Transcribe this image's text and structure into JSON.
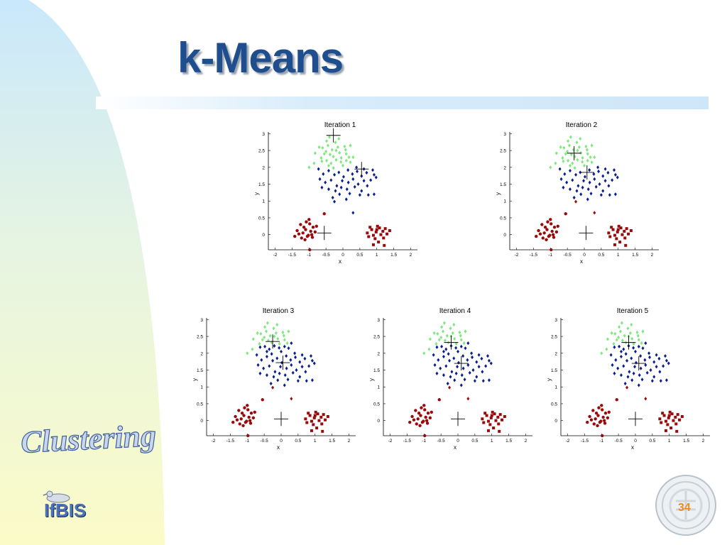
{
  "slide": {
    "title": "k-Means",
    "section_label": "Clustering",
    "logo_text": "IfBIS",
    "page_number": "34",
    "colors": {
      "title": "#1f4e8f",
      "cluster_green": "#7de87d",
      "cluster_blue": "#0a1f8f",
      "cluster_red": "#9b0a0a",
      "page_number": "#f08a1a"
    }
  },
  "chart_data": [
    {
      "type": "scatter",
      "title": "Iteration 1",
      "xlabel": "x",
      "ylabel": "y",
      "xlim": [
        -2.2,
        2.2
      ],
      "ylim": [
        -0.45,
        3.05
      ],
      "xticks": [
        "-2",
        "-1.5",
        "-1",
        "-0.5",
        "0",
        "0.5",
        "1",
        "1.5",
        "2"
      ],
      "yticks": [
        "0",
        "0.5",
        "1",
        "1.5",
        "2",
        "2.5",
        "3"
      ],
      "assignment": {
        "top_in_blue": false,
        "isolated_in_blue": true
      },
      "centroids": [
        [
          -0.28,
          2.95
        ],
        [
          0.55,
          1.95
        ],
        [
          -0.55,
          0.05
        ]
      ]
    },
    {
      "type": "scatter",
      "title": "Iteration 2",
      "xlabel": "x",
      "ylabel": "y",
      "xlim": [
        -2.2,
        2.2
      ],
      "ylim": [
        -0.45,
        3.05
      ],
      "xticks": [
        "-2",
        "-1.5",
        "-1",
        "-0.5",
        "0",
        "0.5",
        "1",
        "1.5",
        "2"
      ],
      "yticks": [
        "0",
        "0.5",
        "1",
        "1.5",
        "2",
        "2.5",
        "3"
      ],
      "assignment": {
        "top_in_blue": false,
        "isolated_in_blue": false
      },
      "centroids": [
        [
          -0.3,
          2.42
        ],
        [
          0.08,
          1.85
        ],
        [
          0.05,
          0.05
        ]
      ]
    },
    {
      "type": "scatter",
      "title": "Iteration 3",
      "xlabel": "x",
      "ylabel": "y",
      "xlim": [
        -2.2,
        2.2
      ],
      "ylim": [
        -0.45,
        3.05
      ],
      "xticks": [
        "-2",
        "-1.5",
        "-1",
        "-0.5",
        "0",
        "0.5",
        "1",
        "1.5",
        "2"
      ],
      "yticks": [
        "0",
        "0.5",
        "1",
        "1.5",
        "2",
        "2.5",
        "3"
      ],
      "assignment": {
        "top_in_blue": true,
        "isolated_in_blue": false
      },
      "centroids": [
        [
          -0.25,
          2.35
        ],
        [
          0.05,
          1.72
        ],
        [
          0.0,
          0.05
        ]
      ]
    },
    {
      "type": "scatter",
      "title": "Iteration 4",
      "xlabel": "x",
      "ylabel": "y",
      "xlim": [
        -2.2,
        2.2
      ],
      "ylim": [
        -0.45,
        3.05
      ],
      "xticks": [
        "-2",
        "-1.5",
        "-1",
        "-0.5",
        "0",
        "0.5",
        "1",
        "1.5",
        "2"
      ],
      "yticks": [
        "0",
        "0.5",
        "1",
        "1.5",
        "2",
        "2.5",
        "3"
      ],
      "assignment": {
        "top_in_blue": true,
        "isolated_in_blue": false
      },
      "centroids": [
        [
          -0.2,
          2.32
        ],
        [
          0.1,
          1.7
        ],
        [
          0.0,
          0.05
        ]
      ]
    },
    {
      "type": "scatter",
      "title": "Iteration 5",
      "xlabel": "x",
      "ylabel": "y",
      "xlim": [
        -2.2,
        2.2
      ],
      "ylim": [
        -0.45,
        3.05
      ],
      "xticks": [
        "-2",
        "-1.5",
        "-1",
        "-0.5",
        "0",
        "0.5",
        "1",
        "1.5",
        "2"
      ],
      "yticks": [
        "0",
        "0.5",
        "1",
        "1.5",
        "2",
        "2.5",
        "3"
      ],
      "assignment": {
        "top_in_blue": true,
        "isolated_in_blue": false
      },
      "centroids": [
        [
          -0.2,
          2.32
        ],
        [
          0.1,
          1.7
        ],
        [
          0.0,
          0.05
        ]
      ]
    }
  ],
  "points": {
    "upper": [
      [
        -0.64,
        2.28
      ],
      [
        -0.5,
        2.47
      ],
      [
        -0.6,
        2.58
      ],
      [
        -0.44,
        2.65
      ],
      [
        -0.32,
        2.52
      ],
      [
        -0.22,
        2.74
      ],
      [
        -0.1,
        2.43
      ],
      [
        0.05,
        2.62
      ],
      [
        -0.55,
        2.4
      ],
      [
        -0.38,
        2.38
      ],
      [
        -0.28,
        2.32
      ],
      [
        -0.15,
        2.6
      ],
      [
        -0.05,
        2.28
      ],
      [
        0.08,
        2.52
      ],
      [
        -0.48,
        2.78
      ],
      [
        -0.82,
        2.42
      ],
      [
        0.18,
        2.3
      ],
      [
        -0.7,
        2.6
      ],
      [
        -0.2,
        2.5
      ],
      [
        -0.12,
        2.85
      ],
      [
        0.22,
        2.65
      ],
      [
        -0.4,
        2.9
      ],
      [
        0.1,
        2.4
      ],
      [
        -1.0,
        2.0
      ],
      [
        -0.85,
        2.12
      ]
    ],
    "top": [
      [
        -0.62,
        2.18
      ],
      [
        -0.48,
        2.2
      ],
      [
        -0.35,
        2.12
      ],
      [
        -0.2,
        2.22
      ],
      [
        -0.06,
        2.16
      ],
      [
        0.1,
        2.2
      ],
      [
        0.22,
        2.15
      ],
      [
        -0.42,
        2.05
      ],
      [
        -0.28,
        1.98
      ],
      [
        0.0,
        2.05
      ],
      [
        0.3,
        2.3
      ]
    ],
    "core": [
      [
        -0.72,
        1.95
      ],
      [
        -0.58,
        1.8
      ],
      [
        -0.42,
        1.9
      ],
      [
        -0.25,
        1.78
      ],
      [
        -0.12,
        1.85
      ],
      [
        0.02,
        1.72
      ],
      [
        0.15,
        1.92
      ],
      [
        0.28,
        1.8
      ],
      [
        0.42,
        1.88
      ],
      [
        0.55,
        1.74
      ],
      [
        0.7,
        1.84
      ],
      [
        0.82,
        1.62
      ],
      [
        0.92,
        1.78
      ],
      [
        0.62,
        1.6
      ],
      [
        0.45,
        1.5
      ],
      [
        0.3,
        1.65
      ],
      [
        0.16,
        1.55
      ],
      [
        -0.02,
        1.6
      ],
      [
        -0.18,
        1.45
      ],
      [
        -0.35,
        1.62
      ],
      [
        -0.52,
        1.55
      ],
      [
        -0.68,
        1.65
      ],
      [
        -0.62,
        1.4
      ],
      [
        -0.42,
        1.35
      ],
      [
        -0.22,
        1.3
      ],
      [
        -0.05,
        1.4
      ],
      [
        0.12,
        1.35
      ],
      [
        0.35,
        1.42
      ],
      [
        0.55,
        1.3
      ],
      [
        0.72,
        1.45
      ],
      [
        0.88,
        1.92
      ],
      [
        0.98,
        1.7
      ],
      [
        0.4,
        2.0
      ],
      [
        0.62,
        1.95
      ],
      [
        -0.1,
        1.2
      ],
      [
        0.2,
        1.22
      ],
      [
        -0.3,
        1.1
      ],
      [
        0.5,
        1.18
      ],
      [
        0.75,
        1.18
      ],
      [
        0.1,
        1.05
      ],
      [
        0.92,
        1.2
      ]
    ],
    "isolated": [
      [
        -0.25,
        0.98
      ],
      [
        0.3,
        0.65
      ]
    ],
    "left": [
      [
        -1.18,
        0.05
      ],
      [
        -1.1,
        0.15
      ],
      [
        -1.02,
        -0.02
      ],
      [
        -0.95,
        0.1
      ],
      [
        -0.88,
        0.22
      ],
      [
        -1.3,
        0.02
      ],
      [
        -1.22,
        -0.1
      ],
      [
        -1.05,
        -0.05
      ],
      [
        -0.98,
        0.32
      ],
      [
        -0.82,
        0.08
      ],
      [
        -1.15,
        0.22
      ],
      [
        -1.35,
        0.12
      ],
      [
        -0.9,
        -0.08
      ],
      [
        -0.78,
        0.25
      ],
      [
        -1.08,
        0.38
      ],
      [
        -1.25,
        0.3
      ],
      [
        -1.0,
        0.45
      ],
      [
        -1.42,
        -0.05
      ],
      [
        -0.92,
        0.0
      ],
      [
        -1.12,
        -0.15
      ],
      [
        -0.55,
        0.62
      ],
      [
        -0.98,
        -0.45
      ]
    ],
    "right": [
      [
        0.72,
        0.05
      ],
      [
        0.85,
        0.15
      ],
      [
        0.98,
        0.08
      ],
      [
        1.08,
        0.2
      ],
      [
        1.18,
        0.1
      ],
      [
        0.9,
        -0.02
      ],
      [
        1.02,
        0.25
      ],
      [
        1.25,
        0.18
      ],
      [
        0.8,
        0.22
      ],
      [
        1.12,
        0.0
      ],
      [
        0.95,
        -0.12
      ],
      [
        1.2,
        -0.1
      ],
      [
        1.3,
        0.02
      ],
      [
        0.76,
        -0.06
      ],
      [
        1.05,
        -0.22
      ],
      [
        1.22,
        -0.32
      ],
      [
        0.9,
        -0.3
      ],
      [
        1.38,
        0.12
      ],
      [
        1.0,
        0.15
      ]
    ]
  }
}
